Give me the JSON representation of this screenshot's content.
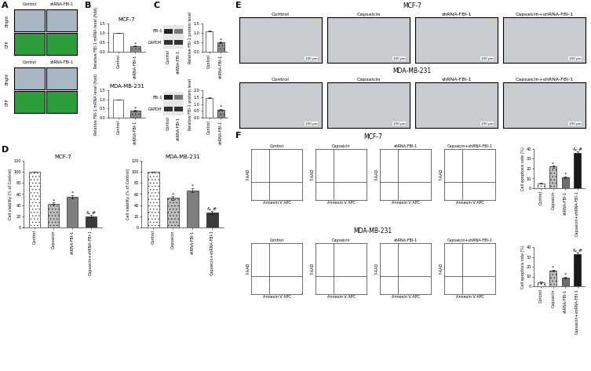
{
  "chart_data": [
    {
      "type": "bar",
      "title": "MCF-7",
      "y_label": "Relative FBI-1 mRNA level (fold)",
      "categories": [
        "Control",
        "shRNA-FBI-1"
      ],
      "values": [
        1.0,
        0.3
      ],
      "errors": [
        0,
        0.02
      ],
      "colors": [
        "#ffffff",
        "#8c8c8c"
      ],
      "annotations": [
        null,
        "*"
      ],
      "ylim": [
        0.0,
        1.5
      ],
      "yticks": [
        0.0,
        0.5,
        1.0,
        1.5
      ]
    },
    {
      "type": "bar",
      "title": "MDA-MB-231",
      "y_label": "Relative FBI-1 mRNA level (fold)",
      "categories": [
        "Control",
        "shRNA-FBI-1"
      ],
      "values": [
        1.0,
        0.38
      ],
      "errors": [
        0,
        0.03
      ],
      "colors": [
        "#ffffff",
        "#8c8c8c"
      ],
      "annotations": [
        null,
        "*"
      ],
      "ylim": [
        0.0,
        1.5
      ],
      "yticks": [
        0.0,
        0.5,
        1.0,
        1.5
      ]
    },
    {
      "type": "bar",
      "y_label": "Relative FBI-1 protein level",
      "categories": [
        "Control",
        "shRNA-FBI-1"
      ],
      "values": [
        1.1,
        0.5
      ],
      "errors": [
        0.02,
        0.03
      ],
      "colors": [
        "#ffffff",
        "#8c8c8c"
      ],
      "annotations": [
        null,
        "*"
      ],
      "ylim": [
        0.0,
        1.5
      ],
      "yticks": [
        0.0,
        0.5,
        1.0,
        1.5
      ]
    },
    {
      "type": "bar",
      "y_label": "Relative FBI-1 protein level",
      "categories": [
        "Control",
        "shRNA-FBI-1"
      ],
      "values": [
        1.45,
        0.6
      ],
      "errors": [
        0.03,
        0.03
      ],
      "colors": [
        "#ffffff",
        "#8c8c8c"
      ],
      "annotations": [
        null,
        "*"
      ],
      "ylim": [
        0.0,
        2.0
      ],
      "yticks": [
        0.0,
        0.5,
        1.0,
        1.5,
        2.0
      ]
    },
    {
      "type": "bar",
      "title": "MCF-7",
      "y_label": "Cell viability (% of Control)",
      "categories": [
        "Control",
        "Capsaicin",
        "shRNA-FBI-1",
        "Capsaicin+shRNA-FBI-1"
      ],
      "values": [
        100,
        43,
        55,
        20
      ],
      "errors": [
        0,
        2,
        3,
        2
      ],
      "colors": [
        "#ffffff",
        "#bdbdbd",
        "#7f7f7f",
        "#3a3a3a"
      ],
      "annotations": [
        null,
        "*",
        "*",
        "& #"
      ],
      "ylim": [
        0,
        120
      ],
      "yticks": [
        0,
        20,
        40,
        60,
        80,
        100,
        120
      ]
    },
    {
      "type": "bar",
      "title": "MDA-MB-231",
      "y_label": "Cell viability (% of Control)",
      "categories": [
        "Control",
        "Capsaicin",
        "shRNA-FBI-1",
        "Capsaicin+shRNA-FBI-1"
      ],
      "values": [
        100,
        53,
        67,
        27
      ],
      "errors": [
        0,
        3,
        4,
        3
      ],
      "colors": [
        "#ffffff",
        "#bdbdbd",
        "#7f7f7f",
        "#3a3a3a"
      ],
      "annotations": [
        null,
        "*",
        "*",
        "& #"
      ],
      "ylim": [
        0,
        120
      ],
      "yticks": [
        0,
        20,
        40,
        60,
        80,
        100,
        120
      ]
    },
    {
      "type": "bar",
      "y_label": "Cell apoptosis rate (%)",
      "categories": [
        "Control",
        "Capsaicin",
        "shRNA-FBI-1",
        "Capsaicin+shRNA-FBI-1"
      ],
      "values": [
        5,
        22,
        11,
        36
      ],
      "errors": [
        0.5,
        1,
        1,
        1.5
      ],
      "colors": [
        "#ffffff",
        "#bdbdbd",
        "#6e6e6e",
        "#1a1a1a"
      ],
      "annotations": [
        null,
        "*",
        "*",
        "& #"
      ],
      "ylim": [
        0,
        40
      ],
      "yticks": [
        0,
        10,
        20,
        30,
        40
      ]
    },
    {
      "type": "bar",
      "y_label": "Cell apoptosis rate (%)",
      "categories": [
        "Control",
        "Capsaicin",
        "shRNA-FBI-1",
        "Capsaicin+shRNA-FBI-1"
      ],
      "values": [
        4,
        16,
        9,
        33
      ],
      "errors": [
        0.5,
        1,
        1,
        1.5
      ],
      "colors": [
        "#ffffff",
        "#bdbdbd",
        "#6e6e6e",
        "#1a1a1a"
      ],
      "annotations": [
        null,
        "*",
        "*",
        "& #"
      ],
      "ylim": [
        0,
        40
      ],
      "yticks": [
        0,
        10,
        20,
        30,
        40
      ]
    }
  ],
  "figure": {
    "panel_labels": [
      "A",
      "B",
      "C",
      "D",
      "E",
      "F"
    ],
    "A": {
      "columns": [
        "Control",
        "shRNA-FBI-1"
      ],
      "rows": [
        "Bright",
        "GFP"
      ]
    },
    "C_blot": {
      "bands": [
        "FBI-1",
        "GAPDH"
      ],
      "lanes": [
        "Control",
        "shRNA-FBI-1"
      ]
    },
    "E": {
      "cell_lines": [
        "MCF-7",
        "MDA-MB-231"
      ],
      "columns": [
        "Control",
        "Capsaicin",
        "shRNA-FBI-1",
        "Capsaicin+shRNA-FBI-1"
      ],
      "scale_bar": "100 μm"
    },
    "F": {
      "cell_lines": [
        "MCF-7",
        "MDA-MB-231"
      ],
      "columns": [
        "Control",
        "Capsaicin",
        "shRNA-FBI-1",
        "Capsaicin+shRNA-FBI-1"
      ],
      "x_label": "Annexin V APC",
      "y_label": "7-AAD"
    }
  }
}
